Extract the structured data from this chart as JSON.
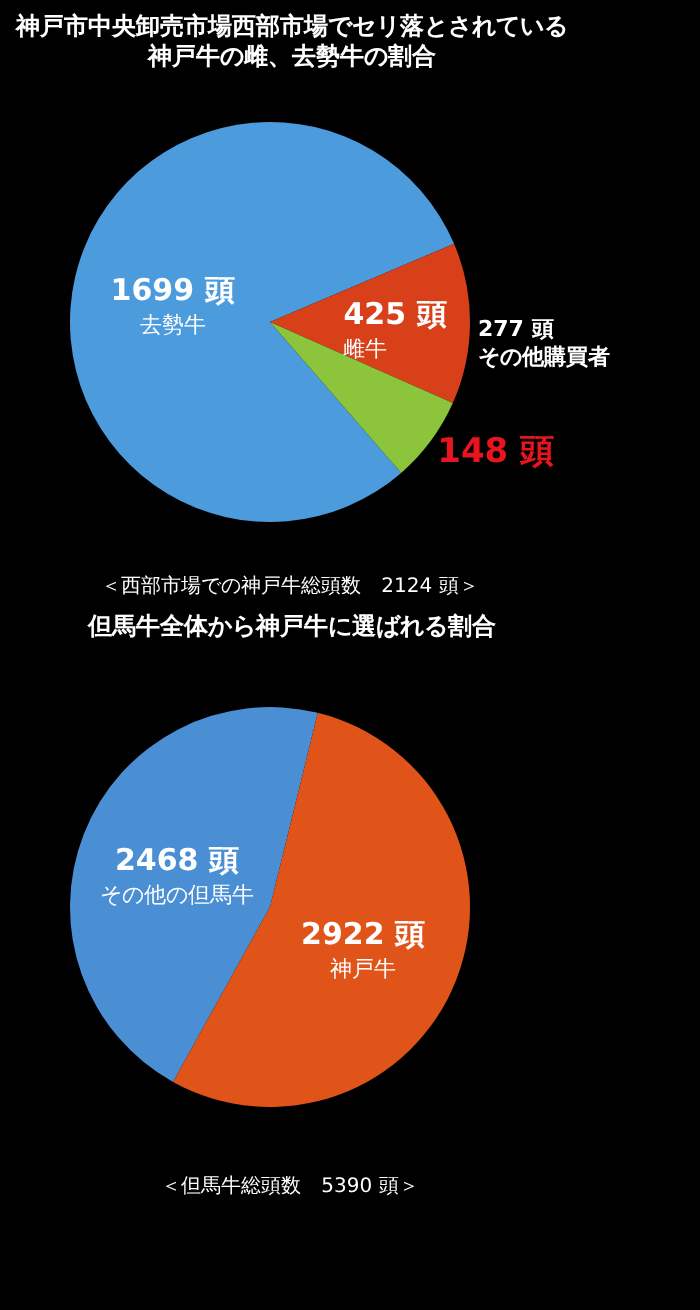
{
  "chart_data": [
    {
      "type": "pie",
      "title": "神戸市中央卸売市場西部市場でセリ落とされている神戸牛の雌、去勢牛の割合",
      "categories": [
        "去勢牛",
        "その他購買者",
        null
      ],
      "values": [
        1699,
        277,
        148
      ],
      "colors": [
        "#4c9bdc",
        "#d8401a",
        "#8cc43c"
      ],
      "value_labels": [
        "1699 頭",
        "277 頭",
        "148 頭"
      ],
      "annotations": [
        "425 頭",
        "雌牛",
        "＜西部市場での神戸牛総頭数　2124 頭＞"
      ]
    },
    {
      "type": "pie",
      "title": "但馬牛全体から神戸牛に選ばれる割合",
      "categories": [
        "その他の但馬牛",
        "神戸牛"
      ],
      "values": [
        2468,
        2922
      ],
      "colors": [
        "#4a8fd4",
        "#e0541a"
      ],
      "value_labels": [
        "2468 頭",
        "2922 頭"
      ],
      "annotations": [
        "＜但馬牛総頭数　5390 頭＞"
      ]
    }
  ]
}
